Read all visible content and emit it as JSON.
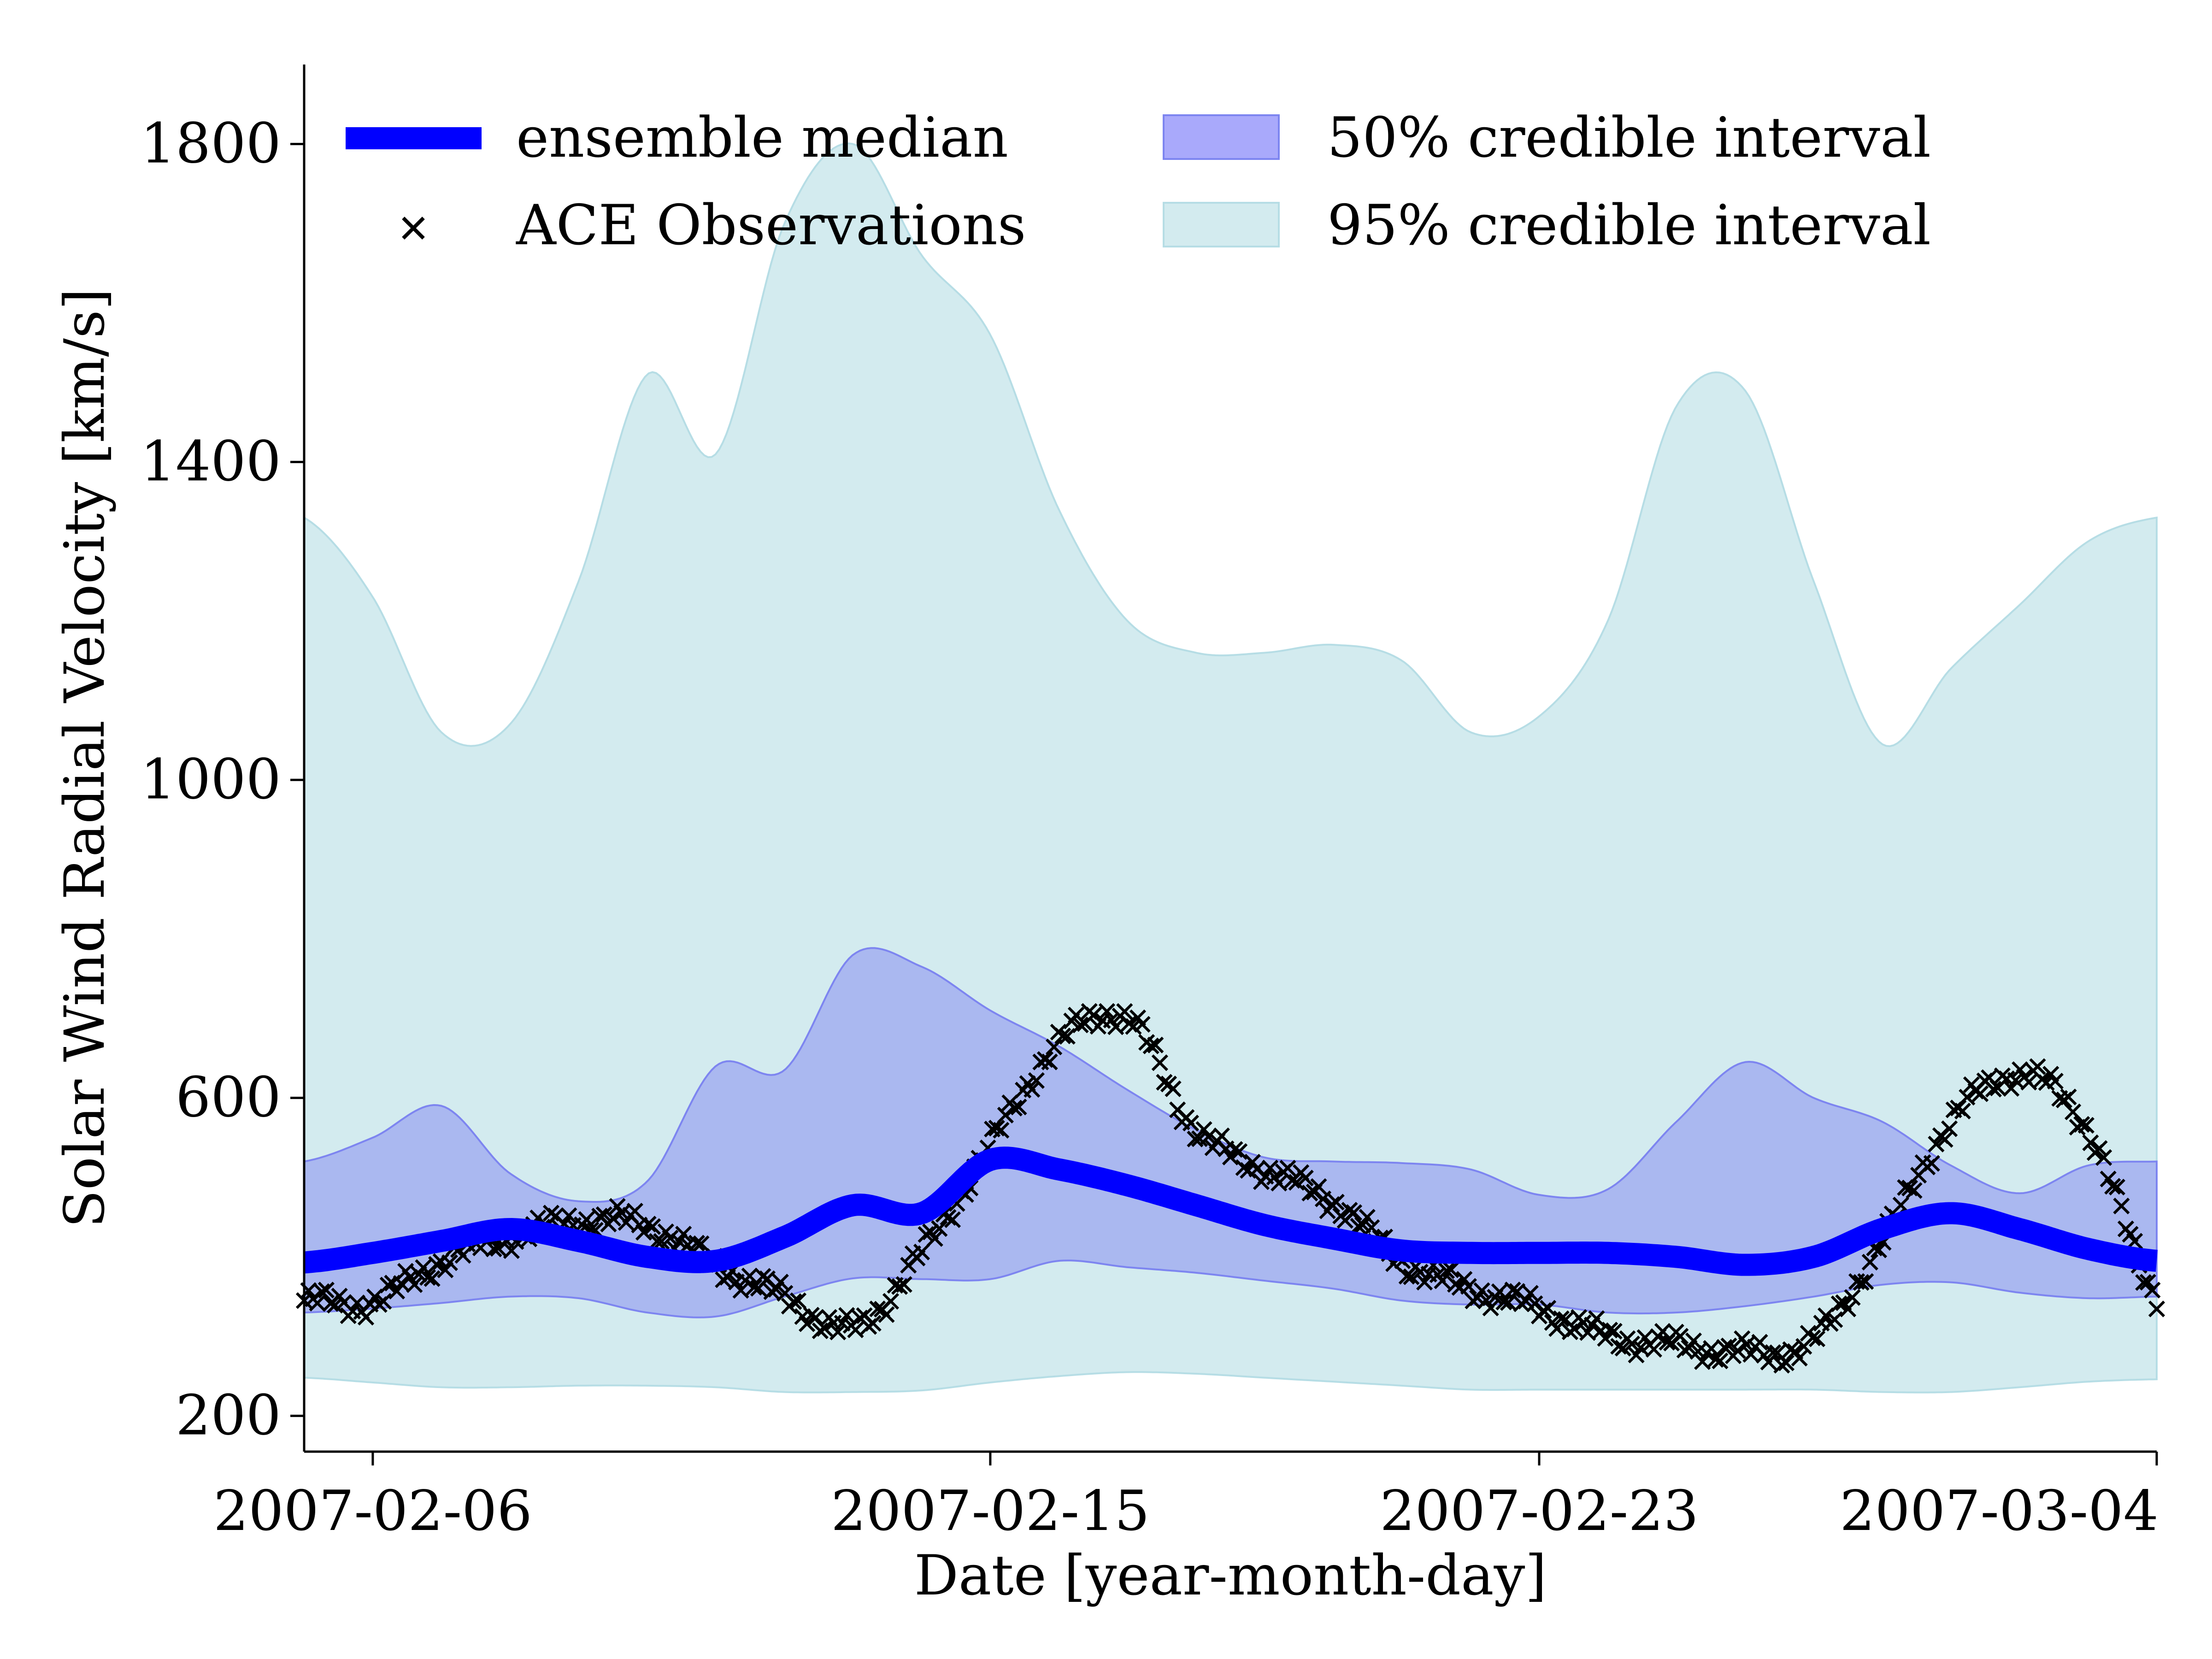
{
  "chart_data": {
    "type": "line",
    "xlabel": "Date [year-month-day]",
    "ylabel": "Solar Wind Radial Velocity [km/s]",
    "x_range": [
      "2007-02-05",
      "2007-03-04"
    ],
    "ylim": [
      155,
      1900
    ],
    "yticks": [
      200,
      600,
      1000,
      1400,
      1800
    ],
    "xticks": [
      "2007-02-06",
      "2007-02-15",
      "2007-02-23",
      "2007-03-04"
    ],
    "grid": false,
    "legend_position": "top",
    "legend": {
      "median": "ensemble median",
      "obs": "ACE Observations",
      "ci50": "50% credible interval",
      "ci95": "95% credible interval"
    },
    "colors": {
      "median": "#0000ff",
      "ci50_fill": "#aab8f0",
      "ci50_edge": "#7d85f0",
      "ci95_fill": "#d3ebef",
      "ci95_edge": "#b6dde5",
      "obs": "#000000"
    },
    "x": [
      "2007-02-05",
      "2007-02-06",
      "2007-02-07",
      "2007-02-08",
      "2007-02-09",
      "2007-02-10",
      "2007-02-11",
      "2007-02-12",
      "2007-02-13",
      "2007-02-14",
      "2007-02-15",
      "2007-02-16",
      "2007-02-17",
      "2007-02-18",
      "2007-02-19",
      "2007-02-20",
      "2007-02-21",
      "2007-02-22",
      "2007-02-23",
      "2007-02-24",
      "2007-02-25",
      "2007-02-26",
      "2007-02-27",
      "2007-02-28",
      "2007-03-01",
      "2007-03-02",
      "2007-03-03",
      "2007-03-04"
    ],
    "series": [
      {
        "name": "95% credible interval upper",
        "values": [
          1330,
          1230,
          1060,
          1070,
          1250,
          1510,
          1410,
          1700,
          1800,
          1660,
          1560,
          1340,
          1200,
          1160,
          1160,
          1170,
          1150,
          1060,
          1080,
          1200,
          1470,
          1490,
          1250,
          1045,
          1140,
          1220,
          1300,
          1330
        ]
      },
      {
        "name": "95% credible interval lower",
        "values": [
          248,
          242,
          236,
          236,
          238,
          238,
          236,
          230,
          230,
          232,
          242,
          250,
          255,
          253,
          248,
          243,
          238,
          233,
          233,
          233,
          233,
          233,
          233,
          230,
          230,
          236,
          243,
          246
        ]
      },
      {
        "name": "50% credible interval upper",
        "values": [
          520,
          550,
          590,
          505,
          470,
          495,
          640,
          635,
          780,
          765,
          710,
          665,
          610,
          560,
          525,
          520,
          518,
          510,
          478,
          485,
          570,
          645,
          600,
          570,
          515,
          480,
          515,
          520
        ]
      },
      {
        "name": "50% credible interval lower",
        "values": [
          330,
          335,
          342,
          350,
          348,
          330,
          325,
          350,
          373,
          372,
          372,
          395,
          387,
          380,
          370,
          360,
          345,
          340,
          340,
          330,
          330,
          338,
          350,
          365,
          368,
          355,
          348,
          350
        ]
      },
      {
        "name": "ensemble median",
        "values": [
          393,
          405,
          420,
          435,
          420,
          400,
          395,
          425,
          465,
          455,
          522,
          510,
          490,
          465,
          440,
          423,
          408,
          405,
          405,
          405,
          400,
          390,
          400,
          435,
          455,
          435,
          410,
          395
        ]
      },
      {
        "name": "ACE Observations",
        "values": [
          345,
          343,
          395,
          425,
          445,
          440,
          390,
          350,
          310,
          405,
          540,
          670,
          700,
          560,
          510,
          470,
          395,
          360,
          335,
          300,
          290,
          280,
          295,
          420,
          570,
          630,
          560,
          350
        ]
      }
    ]
  }
}
